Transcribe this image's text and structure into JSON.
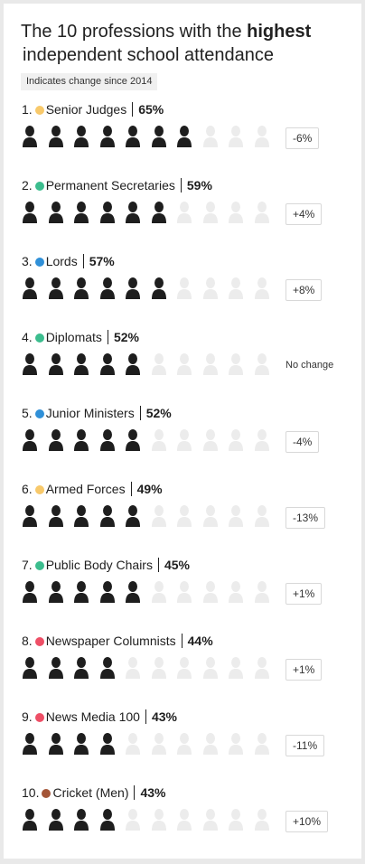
{
  "title": {
    "prefix": "The 10 professions with the ",
    "highlight": "highest",
    "line2": "independent school attendance"
  },
  "note": "Indicates change since 2014",
  "colors": {
    "filled_icon": "#1e1e1e",
    "empty_icon": "#ececec"
  },
  "chart_data": {
    "type": "pictogram",
    "icons_per_row": 10,
    "rows": [
      {
        "rank": "1.",
        "name": "Senior Judges",
        "percent": "65%",
        "value": 65,
        "filled": 7,
        "change": "-6%",
        "dot_color": "#f8c96b"
      },
      {
        "rank": "2.",
        "name": "Permanent Secretaries",
        "percent": "59%",
        "value": 59,
        "filled": 6,
        "change": "+4%",
        "dot_color": "#3cbd8e"
      },
      {
        "rank": "3.",
        "name": "Lords",
        "percent": "57%",
        "value": 57,
        "filled": 6,
        "change": "+8%",
        "dot_color": "#3090d8"
      },
      {
        "rank": "4.",
        "name": "Diplomats",
        "percent": "52%",
        "value": 52,
        "filled": 5,
        "change": "No change",
        "dot_color": "#3cbd8e"
      },
      {
        "rank": "5.",
        "name": "Junior Ministers",
        "percent": "52%",
        "value": 52,
        "filled": 5,
        "change": "-4%",
        "dot_color": "#3090d8"
      },
      {
        "rank": "6.",
        "name": "Armed Forces",
        "percent": "49%",
        "value": 49,
        "filled": 5,
        "change": "-13%",
        "dot_color": "#f8c96b"
      },
      {
        "rank": "7.",
        "name": "Public Body Chairs",
        "percent": "45%",
        "value": 45,
        "filled": 5,
        "change": "+1%",
        "dot_color": "#3cbd8e"
      },
      {
        "rank": "8.",
        "name": "Newspaper Columnists",
        "percent": "44%",
        "value": 44,
        "filled": 4,
        "change": "+1%",
        "dot_color": "#ee4f66"
      },
      {
        "rank": "9.",
        "name": "News Media 100",
        "percent": "43%",
        "value": 43,
        "filled": 4,
        "change": "-11%",
        "dot_color": "#ee4f66"
      },
      {
        "rank": "10.",
        "name": "Cricket (Men)",
        "percent": "43%",
        "value": 43,
        "filled": 4,
        "change": "+10%",
        "dot_color": "#a35537"
      }
    ]
  }
}
